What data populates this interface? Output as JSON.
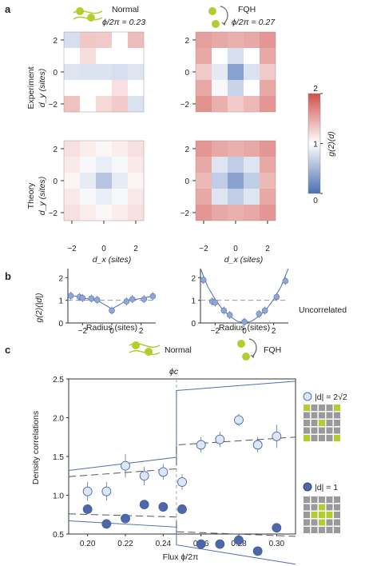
{
  "panels": {
    "a": "a",
    "b": "b",
    "c": "c"
  },
  "headers": {
    "normal": {
      "title": "Normal",
      "subtitle": "ϕ/2π = 0.23"
    },
    "fqh": {
      "title": "FQH",
      "subtitle": "ϕ/2π = 0.27"
    }
  },
  "row_labels": {
    "experiment": "Experiment",
    "theory": "Theory"
  },
  "axis_labels": {
    "dy": "d_y (sites)",
    "dx": "d_x (sites)",
    "colorbar": "g(2)(d)",
    "b_y": "g(2)(|d|)",
    "b_x": "Radius (sites)",
    "c_y": "Density correlations",
    "c_x": "Flux ϕ/2π"
  },
  "labels": {
    "uncorrelated": "Uncorrelated",
    "phi_c": "ϕc",
    "c_normal": "Normal",
    "c_fqh": "FQH",
    "d_sqrt8": "|d| = 2√2",
    "d_one": "|d| = 1"
  },
  "colors": {
    "low": "#4a6fb3",
    "mid": "#ffffff",
    "high": "#d0504b",
    "marker": "#8fa6d6",
    "line": "#4f6fb0",
    "green": "#b5cc2e",
    "grey": "#9a9a9a"
  },
  "chart_data": [
    {
      "type": "heatmap",
      "name_in_figure": "a",
      "x_range": [
        -2,
        2
      ],
      "y_range": [
        -2,
        2
      ],
      "clim": [
        0,
        2
      ],
      "colorbar_ticks": [
        "0",
        "1",
        "2"
      ],
      "x_ticks": [
        "−2",
        "0",
        "2"
      ],
      "y_ticks": [
        "2",
        "0",
        "−2"
      ],
      "matrices": {
        "exp_normal": [
          [
            0.78,
            1.32,
            1.3,
            1.0,
            1.38
          ],
          [
            1.0,
            1.2,
            1.0,
            1.0,
            1.0
          ],
          [
            0.82,
            0.8,
            0.8,
            0.78,
            0.82
          ],
          [
            1.0,
            1.0,
            1.0,
            1.18,
            1.0
          ],
          [
            1.35,
            1.0,
            1.22,
            1.3,
            0.8
          ]
        ],
        "exp_fqh": [
          [
            1.55,
            1.5,
            1.45,
            1.5,
            1.6
          ],
          [
            1.5,
            1.0,
            0.78,
            1.0,
            1.5
          ],
          [
            1.3,
            0.85,
            0.35,
            0.8,
            1.3
          ],
          [
            1.5,
            0.95,
            0.7,
            1.0,
            1.5
          ],
          [
            1.62,
            1.45,
            1.3,
            1.4,
            1.6
          ]
        ],
        "th_normal": [
          [
            1.18,
            1.1,
            1.05,
            1.1,
            1.18
          ],
          [
            1.12,
            0.95,
            0.88,
            0.95,
            1.12
          ],
          [
            1.06,
            0.86,
            0.6,
            0.86,
            1.06
          ],
          [
            1.12,
            0.95,
            0.88,
            0.95,
            1.12
          ],
          [
            1.18,
            1.1,
            1.05,
            1.1,
            1.18
          ]
        ],
        "th_fqh": [
          [
            1.6,
            1.5,
            1.45,
            1.5,
            1.6
          ],
          [
            1.5,
            0.82,
            0.65,
            0.82,
            1.5
          ],
          [
            1.4,
            0.65,
            0.35,
            0.65,
            1.4
          ],
          [
            1.5,
            0.82,
            0.65,
            0.82,
            1.5
          ],
          [
            1.6,
            1.5,
            1.45,
            1.5,
            1.6
          ]
        ]
      }
    },
    {
      "type": "scatter",
      "name_in_figure": "b",
      "xlim": [
        -3,
        3
      ],
      "ylim": [
        0,
        2.4
      ],
      "x_ticks": [
        "−2",
        "0",
        "2"
      ],
      "y_ticks": [
        "0",
        "1",
        "2"
      ],
      "normal": {
        "points": [
          [
            -2.8,
            1.2
          ],
          [
            -2.2,
            1.15
          ],
          [
            -2.0,
            1.1
          ],
          [
            -1.4,
            1.08
          ],
          [
            -1.0,
            1.02
          ],
          [
            0,
            0.55
          ],
          [
            1.0,
            0.95
          ],
          [
            1.4,
            1.05
          ],
          [
            2.2,
            1.05
          ],
          [
            2.8,
            1.18
          ]
        ],
        "curve": [
          [
            -2.9,
            1.25
          ],
          [
            -2,
            1.1
          ],
          [
            -1,
            1.0
          ],
          [
            0,
            0.62
          ],
          [
            1,
            0.98
          ],
          [
            2,
            1.08
          ],
          [
            2.9,
            1.2
          ]
        ]
      },
      "fqh": {
        "points": [
          [
            -2.8,
            1.9
          ],
          [
            -2.2,
            0.95
          ],
          [
            -2.0,
            0.9
          ],
          [
            -1.4,
            0.55
          ],
          [
            -1.0,
            0.35
          ],
          [
            0,
            0.05
          ],
          [
            1.0,
            0.4
          ],
          [
            1.4,
            0.55
          ],
          [
            2.2,
            1.15
          ],
          [
            2.8,
            1.85
          ]
        ],
        "curve": [
          [
            -3,
            2.4
          ],
          [
            -2.5,
            1.6
          ],
          [
            -2,
            1.05
          ],
          [
            -1.5,
            0.6
          ],
          [
            -1,
            0.3
          ],
          [
            -0.5,
            0.08
          ],
          [
            0,
            0.0
          ],
          [
            0.5,
            0.08
          ],
          [
            1,
            0.3
          ],
          [
            1.5,
            0.6
          ],
          [
            2,
            1.05
          ],
          [
            2.5,
            1.6
          ],
          [
            3,
            2.4
          ]
        ]
      }
    },
    {
      "type": "scatter",
      "name_in_figure": "c",
      "xlim": [
        0.19,
        0.31
      ],
      "ylim": [
        0.5,
        2.5
      ],
      "phi_c": 0.247,
      "x_ticks": [
        "0.20",
        "0.22",
        "0.24",
        "0.26",
        "0.28",
        "0.30"
      ],
      "y_ticks": [
        "0.5",
        "1.0",
        "1.5",
        "2.0",
        "2.5"
      ],
      "series": [
        {
          "key": "sqrt8",
          "fill": "#dbe6f7",
          "x": [
            0.2,
            0.21,
            0.22,
            0.23,
            0.24,
            0.25,
            0.26,
            0.27,
            0.28,
            0.29,
            0.3
          ],
          "y": [
            1.05,
            1.05,
            1.38,
            1.25,
            1.3,
            1.17,
            1.65,
            1.72,
            1.97,
            1.65,
            1.76
          ],
          "err": [
            0.12,
            0.12,
            0.15,
            0.12,
            0.1,
            0.1,
            0.1,
            0.1,
            0.08,
            0.1,
            0.15
          ],
          "theory_solid": [
            [
              0.19,
              1.32
            ],
            [
              0.247,
              1.49
            ],
            [
              0.247,
              2.35
            ],
            [
              0.31,
              2.47
            ]
          ],
          "theory_dashed": [
            [
              0.19,
              1.24
            ],
            [
              0.247,
              1.34
            ],
            [
              0.247,
              1.65
            ],
            [
              0.31,
              1.75
            ]
          ]
        },
        {
          "key": "one",
          "fill": "#4e67ab",
          "x": [
            0.2,
            0.21,
            0.22,
            0.23,
            0.24,
            0.25,
            0.26,
            0.27,
            0.28,
            0.29,
            0.3
          ],
          "y": [
            0.82,
            0.63,
            0.7,
            0.88,
            0.85,
            0.82,
            0.37,
            0.37,
            0.42,
            0.28,
            0.58
          ],
          "err": [
            0,
            0,
            0,
            0,
            0,
            0,
            0,
            0,
            0,
            0,
            0
          ],
          "theory_solid": [
            [
              0.19,
              0.67
            ],
            [
              0.247,
              0.59
            ],
            [
              0.247,
              0.36
            ],
            [
              0.31,
              0.11
            ]
          ],
          "theory_dashed": [
            [
              0.19,
              0.76
            ],
            [
              0.247,
              0.72
            ],
            [
              0.247,
              0.53
            ],
            [
              0.31,
              0.47
            ]
          ]
        }
      ]
    }
  ]
}
